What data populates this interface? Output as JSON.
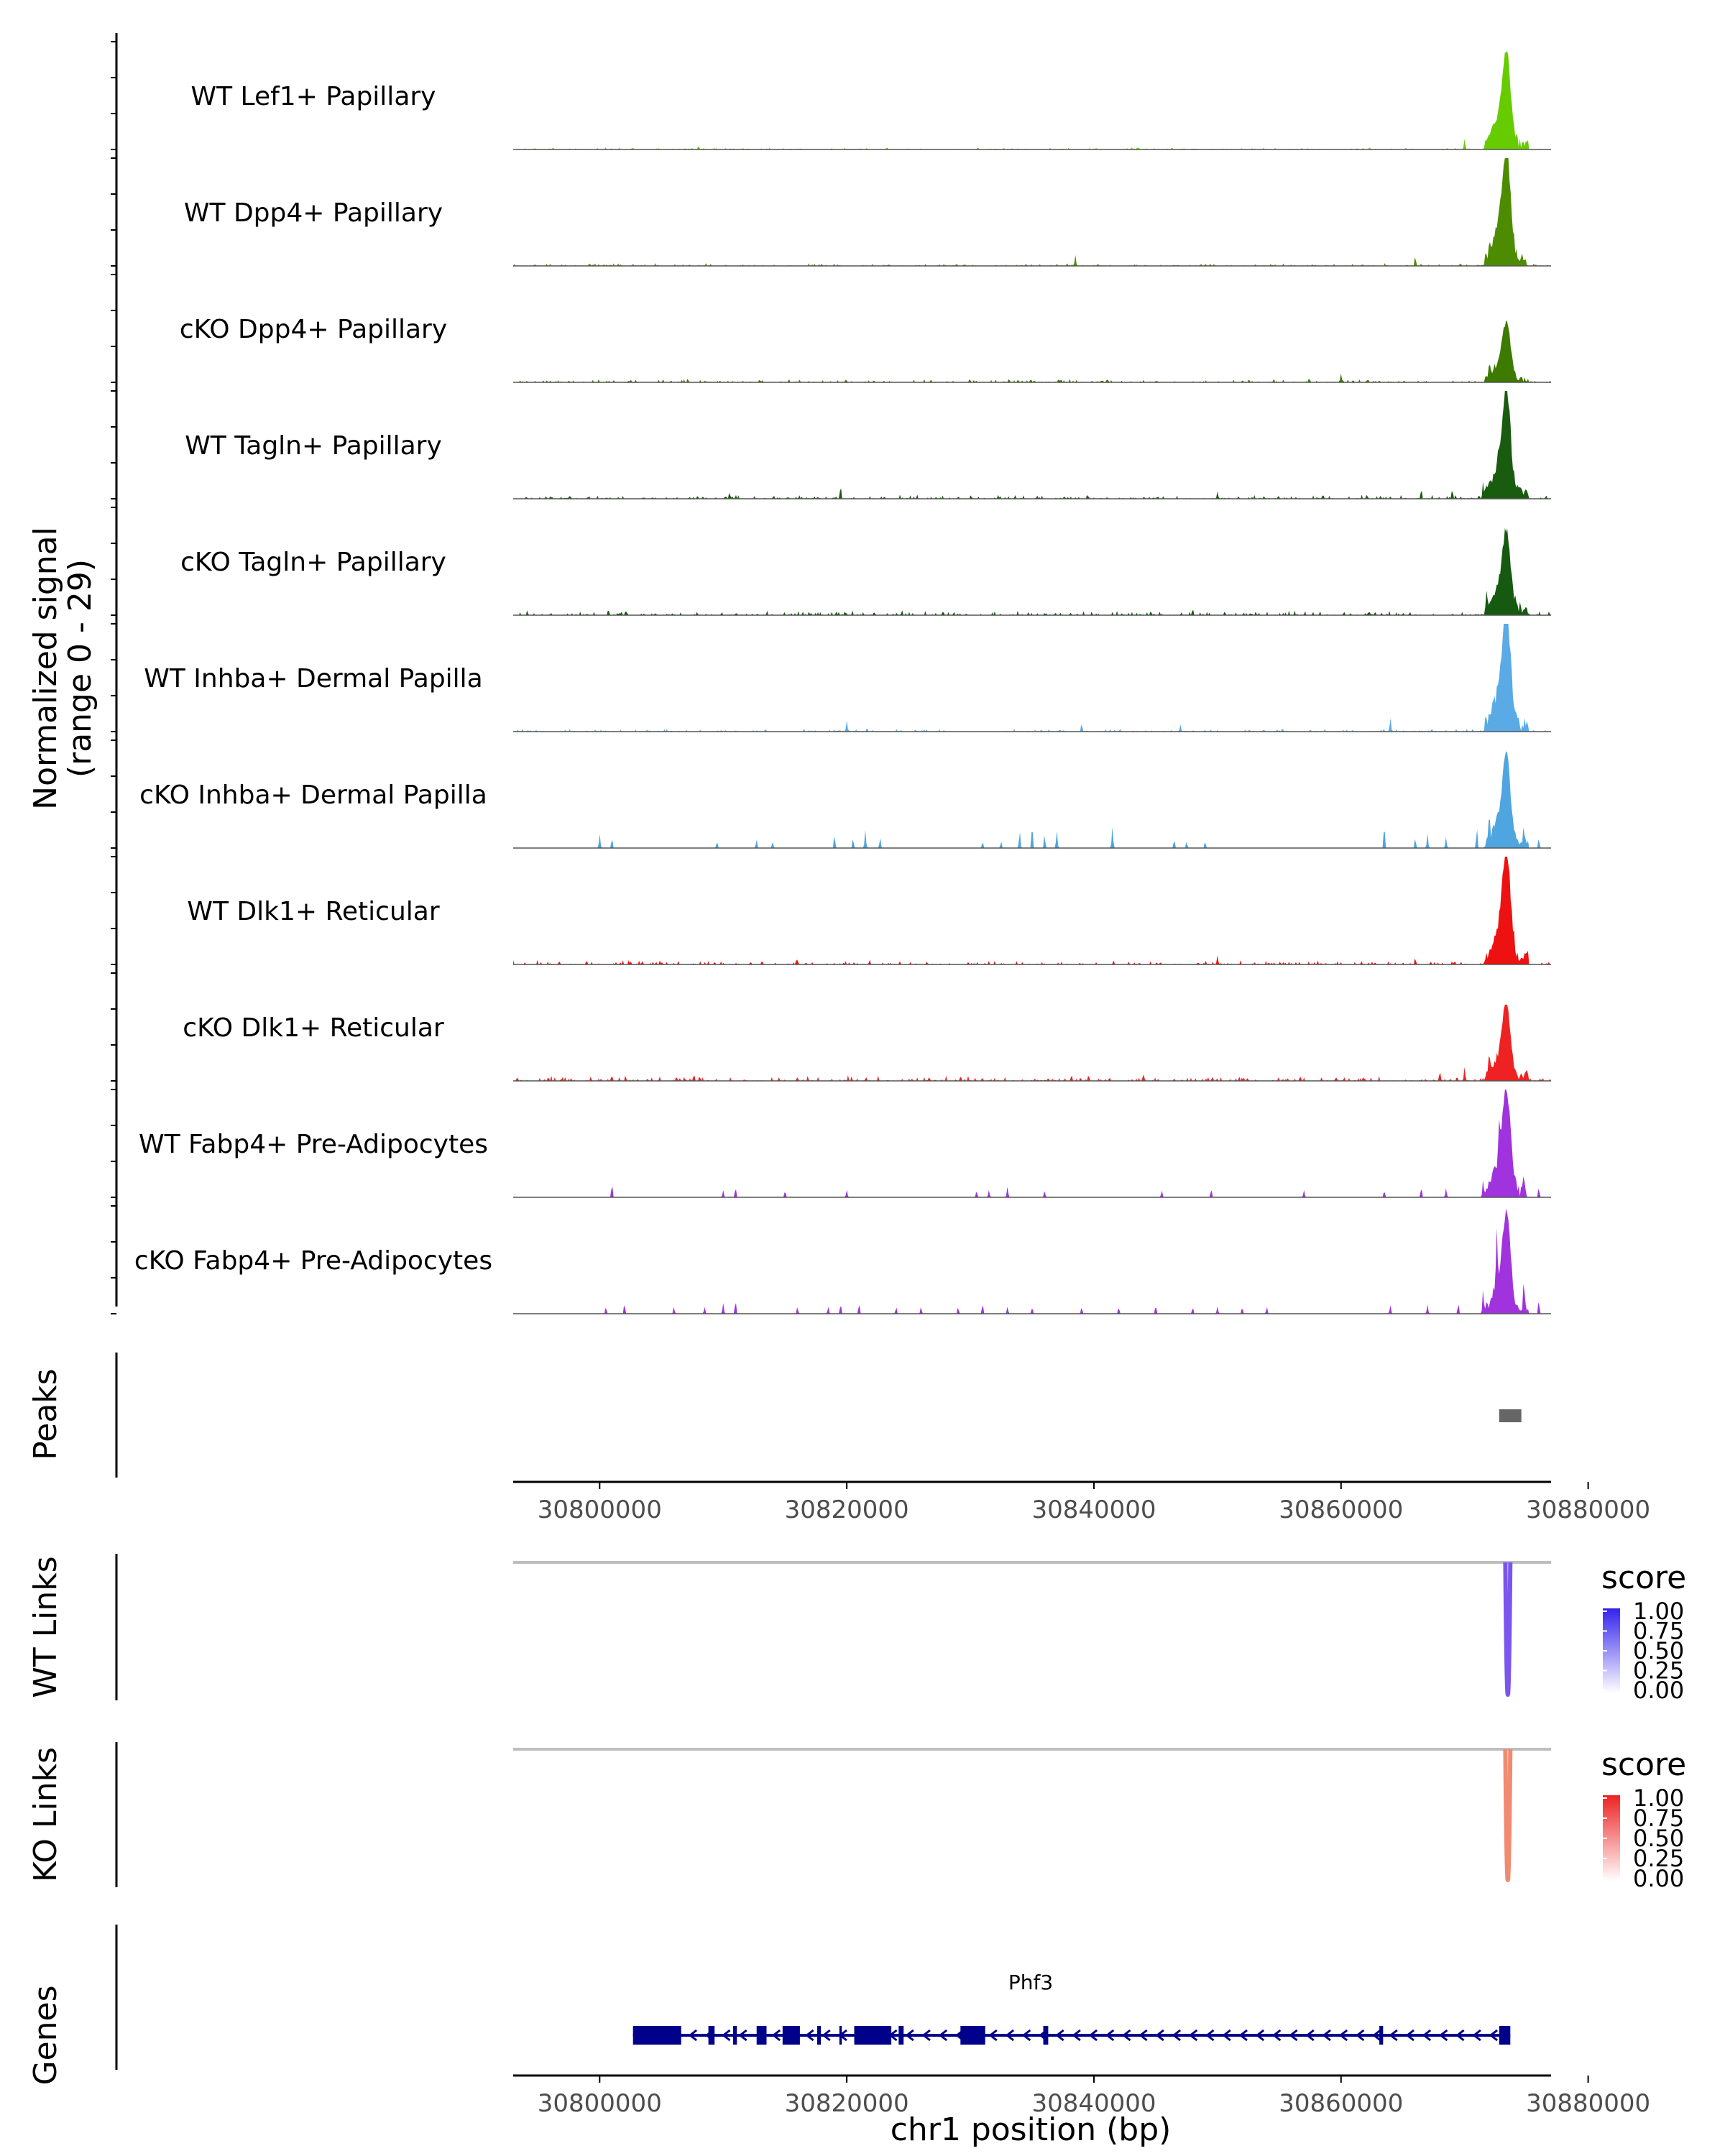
{
  "chart_data": {
    "type": "area",
    "title": "",
    "xlabel": "chr1 position (bp)",
    "xlim": [
      30793000,
      30877000
    ],
    "x_ticks": [
      30800000,
      30820000,
      30840000,
      30860000,
      30880000
    ],
    "x_tick_labels": [
      "30800000",
      "30820000",
      "30840000",
      "30860000",
      "30880000"
    ],
    "signal_panel": {
      "ylabel_line1": "Normalized signal",
      "ylabel_line2": "(range 0 - 29)",
      "ylim": [
        0,
        29
      ],
      "data_start": 30793000,
      "data_end": 30877000,
      "peak_center": 30873400,
      "tracks": [
        {
          "name": "WT Lef1+ Papillary",
          "color": "#66cc00",
          "peak_height": 24,
          "noise": 0.6,
          "spikes": [
            [
              30808000,
              1.2
            ],
            [
              30870000,
              3
            ]
          ]
        },
        {
          "name": "WT Dpp4+ Papillary",
          "color": "#4d8c00",
          "peak_height": 28,
          "noise": 0.8,
          "spikes": [
            [
              30838500,
              3
            ],
            [
              30866000,
              3
            ],
            [
              30872000,
              5
            ]
          ]
        },
        {
          "name": "cKO Dpp4+ Papillary",
          "color": "#3d7a00",
          "peak_height": 14,
          "noise": 1.0,
          "spikes": [
            [
              30860000,
              2.5
            ],
            [
              30872000,
              5
            ]
          ]
        },
        {
          "name": "WT Tagln+ Papillary",
          "color": "#1a5c0f",
          "peak_height": 26,
          "noise": 1.2,
          "spikes": [
            [
              30810500,
              2
            ],
            [
              30819500,
              4
            ],
            [
              30850000,
              2
            ],
            [
              30866500,
              3
            ],
            [
              30869000,
              3
            ],
            [
              30871500,
              5
            ]
          ]
        },
        {
          "name": "cKO Tagln+ Papillary",
          "color": "#155a10",
          "peak_height": 20,
          "noise": 1.4,
          "spikes": [
            [
              30848000,
              2
            ],
            [
              30871800,
              5
            ],
            [
              30874500,
              4
            ]
          ]
        },
        {
          "name": "WT Inhba+ Dermal Papilla",
          "color": "#5aaae6",
          "peak_height": 29,
          "noise": 0.8,
          "spikes": [
            [
              30820000,
              3
            ],
            [
              30839000,
              2.5
            ],
            [
              30847000,
              2
            ],
            [
              30864000,
              4
            ]
          ]
        },
        {
          "name": "cKO Inhba+ Dermal Papilla",
          "color": "#4ea5e0",
          "peak_height": 22,
          "noise": 0.0,
          "spikes": [
            [
              30800000,
              4
            ],
            [
              30801000,
              3
            ],
            [
              30809500,
              2
            ],
            [
              30812700,
              2.5
            ],
            [
              30814000,
              2
            ],
            [
              30819000,
              4
            ],
            [
              30820500,
              3
            ],
            [
              30821500,
              5
            ],
            [
              30822700,
              3
            ],
            [
              30831000,
              2
            ],
            [
              30832500,
              2
            ],
            [
              30834000,
              5
            ],
            [
              30835000,
              7
            ],
            [
              30836000,
              4
            ],
            [
              30837000,
              5
            ],
            [
              30841500,
              6
            ],
            [
              30846500,
              2.5
            ],
            [
              30847500,
              2
            ],
            [
              30849000,
              2
            ],
            [
              30863500,
              7
            ],
            [
              30866000,
              3
            ],
            [
              30867000,
              4
            ],
            [
              30868500,
              3
            ],
            [
              30871000,
              6
            ],
            [
              30872000,
              8
            ],
            [
              30874800,
              5
            ],
            [
              30876000,
              3
            ]
          ]
        },
        {
          "name": "WT Dlk1+ Reticular",
          "color": "#ee1111",
          "peak_height": 27,
          "noise": 1.3,
          "spikes": [
            [
              30816000,
              1.5
            ],
            [
              30850000,
              2.5
            ],
            [
              30866000,
              2
            ]
          ]
        },
        {
          "name": "cKO Dlk1+ Reticular",
          "color": "#ee2222",
          "peak_height": 18,
          "noise": 1.6,
          "spikes": [
            [
              30844000,
              2
            ],
            [
              30868000,
              3
            ],
            [
              30870000,
              4
            ],
            [
              30872000,
              6
            ],
            [
              30875000,
              3
            ]
          ]
        },
        {
          "name": "WT Fabp4+ Pre-Adipocytes",
          "color": "#a033dd",
          "peak_height": 26,
          "noise": 0.0,
          "spikes": [
            [
              30801000,
              4
            ],
            [
              30810000,
              2
            ],
            [
              30811000,
              3
            ],
            [
              30815000,
              2
            ],
            [
              30820000,
              2
            ],
            [
              30830500,
              2
            ],
            [
              30831500,
              2
            ],
            [
              30833000,
              3
            ],
            [
              30836000,
              2
            ],
            [
              30845500,
              2
            ],
            [
              30849500,
              2.5
            ],
            [
              30857000,
              2
            ],
            [
              30863500,
              2
            ],
            [
              30866500,
              3
            ],
            [
              30868500,
              2.5
            ],
            [
              30871500,
              5
            ],
            [
              30872800,
              9
            ],
            [
              30874800,
              4
            ],
            [
              30876000,
              3
            ]
          ]
        },
        {
          "name": "cKO Fabp4+ Pre-Adipocytes",
          "color": "#a033dd",
          "peak_height": 24,
          "noise": 0.0,
          "spikes": [
            [
              30800500,
              2
            ],
            [
              30802000,
              3
            ],
            [
              30806000,
              2
            ],
            [
              30808500,
              2
            ],
            [
              30810000,
              3
            ],
            [
              30811000,
              4
            ],
            [
              30816000,
              2
            ],
            [
              30818500,
              2
            ],
            [
              30819500,
              3
            ],
            [
              30821000,
              3
            ],
            [
              30824000,
              2
            ],
            [
              30826000,
              2
            ],
            [
              30829000,
              2
            ],
            [
              30831000,
              3
            ],
            [
              30833000,
              2
            ],
            [
              30835000,
              2
            ],
            [
              30839000,
              2
            ],
            [
              30842000,
              2
            ],
            [
              30845000,
              2.5
            ],
            [
              30848000,
              2
            ],
            [
              30850000,
              2
            ],
            [
              30852000,
              2
            ],
            [
              30854000,
              2
            ],
            [
              30864000,
              2.5
            ],
            [
              30867000,
              2.5
            ],
            [
              30869500,
              3
            ],
            [
              30871500,
              7
            ],
            [
              30872600,
              17
            ],
            [
              30874800,
              8
            ],
            [
              30876000,
              4
            ]
          ]
        }
      ]
    },
    "peaks_panel": {
      "label": "Peaks",
      "color": "#666666",
      "peaks": [
        [
          30872800,
          30874600
        ]
      ]
    },
    "links_panels": [
      {
        "label": "WT Links",
        "legend_title": "score",
        "legend_ticks": [
          "1.00",
          "0.75",
          "0.50",
          "0.25",
          "0.00"
        ],
        "color_high": "#3322ee",
        "color_low": "#ffffff",
        "link_color": "#7a55ee",
        "baseline_color": "#bebebe",
        "links": [
          {
            "start": 30873300,
            "end": 30873700,
            "score": 0.7
          }
        ]
      },
      {
        "label": "KO Links",
        "legend_title": "score",
        "legend_ticks": [
          "1.00",
          "0.75",
          "0.50",
          "0.25",
          "0.00"
        ],
        "color_high": "#ee2222",
        "color_low": "#ffffff",
        "link_color": "#f08a70",
        "baseline_color": "#bebebe",
        "links": [
          {
            "start": 30873300,
            "end": 30873700,
            "score": 0.55
          }
        ]
      }
    ],
    "genes_panel": {
      "label": "Genes",
      "gene_name": "Phf3",
      "color": "#00008b",
      "gene_start": 30802700,
      "gene_end": 30873700,
      "strand": "-",
      "exons": [
        [
          30802700,
          30806600
        ],
        [
          30808800,
          30809300
        ],
        [
          30810800,
          30811100
        ],
        [
          30812700,
          30813500
        ],
        [
          30814800,
          30816200
        ],
        [
          30817600,
          30817900
        ],
        [
          30819400,
          30819600
        ],
        [
          30820600,
          30823600
        ],
        [
          30824200,
          30824600
        ],
        [
          30829200,
          30831200
        ],
        [
          30835900,
          30836300
        ],
        [
          30863100,
          30863400
        ],
        [
          30872800,
          30873700
        ]
      ]
    }
  }
}
